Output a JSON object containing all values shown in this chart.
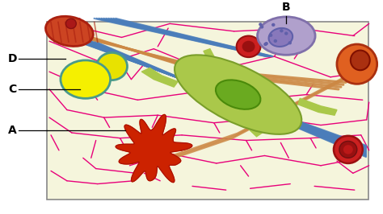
{
  "bg_color": "#f5f5dc",
  "label_A": "A",
  "label_B": "B",
  "label_C": "C",
  "label_D": "D",
  "fig_width": 4.74,
  "fig_height": 2.66,
  "dpi": 100,
  "pink": "#e8007a",
  "blue_fiber": "#4a7dba",
  "orange_fiber": "#cc8844",
  "green_cell": "#aac84a",
  "green_nucleus": "#6aaa20",
  "red_blob": "#cc2200",
  "fat_yellow": "#f5f000",
  "fat_edge": "#4a9a8a",
  "rbc_color": "#cc2020",
  "rbc_dark": "#991010",
  "plasma_color": "#e06020",
  "plasma_dark": "#aa3010",
  "macro_color": "#b0a0cc",
  "macro_nuc": "#8878bb",
  "muscle_color": "#cc4422",
  "muscle_dark": "#aa2010"
}
